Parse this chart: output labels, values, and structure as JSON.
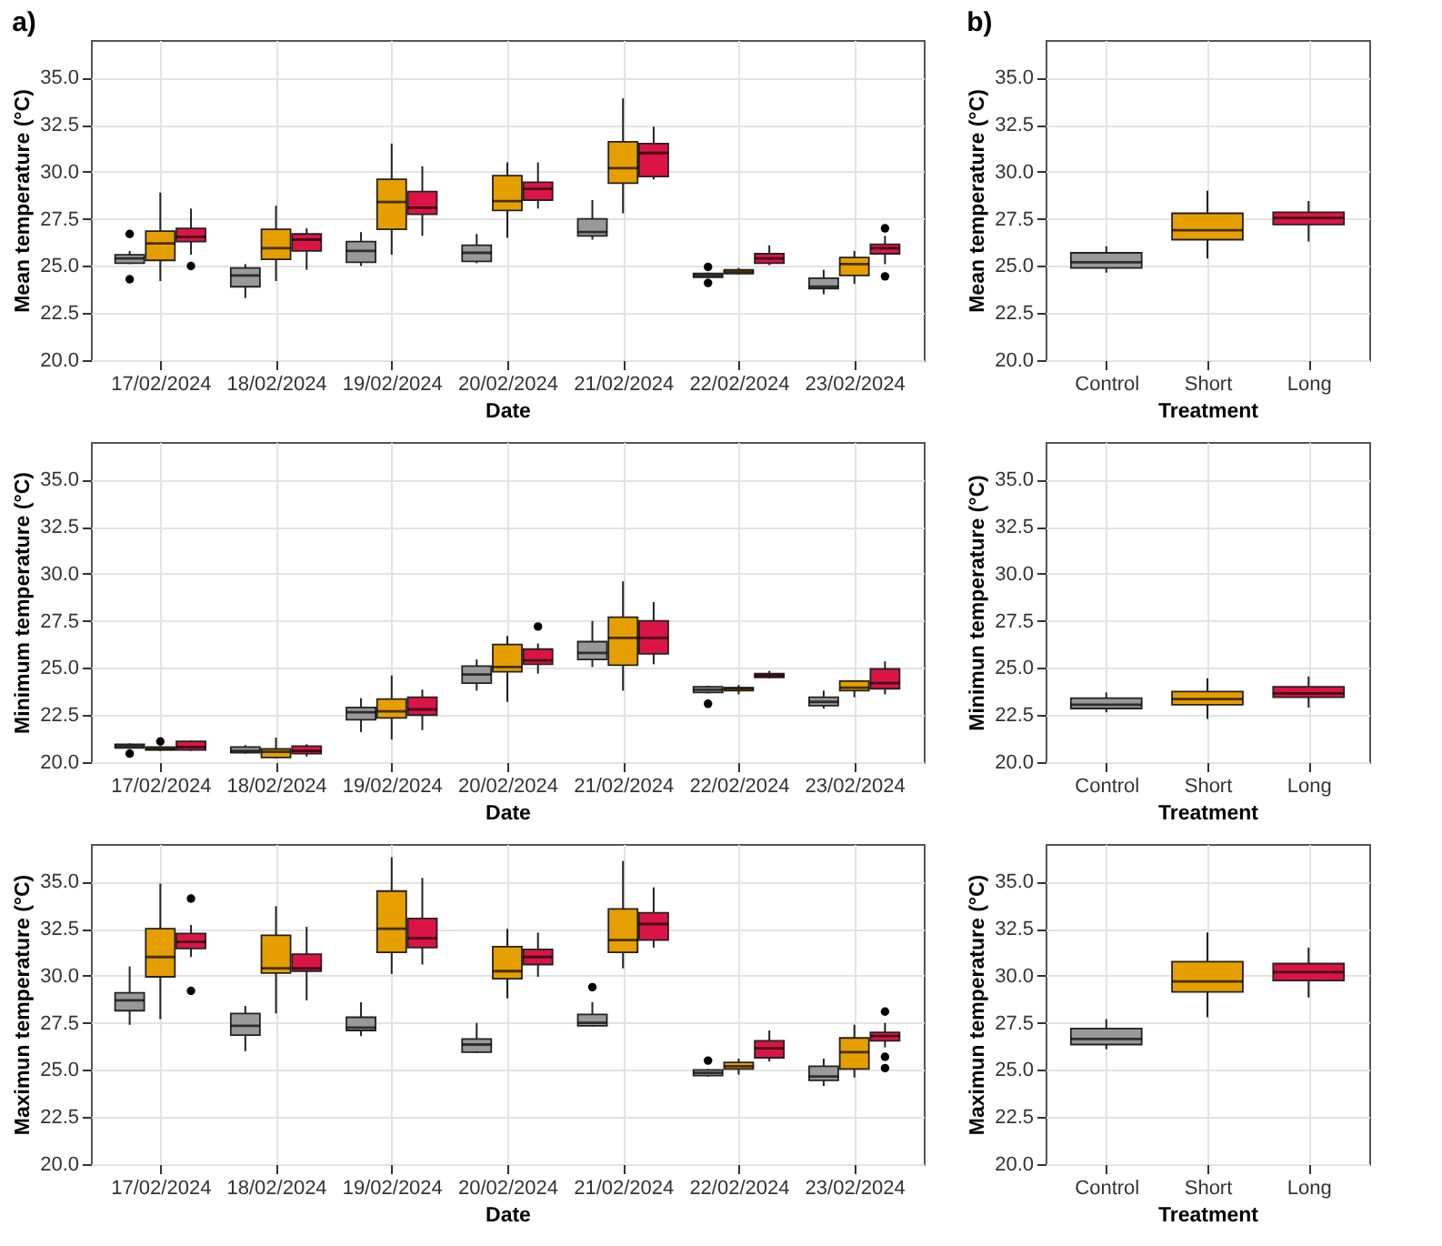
{
  "chart_data": [
    {
      "type": "box",
      "title": "a)",
      "categories": [
        "17/02/2024",
        "18/02/2024",
        "19/02/2024",
        "20/02/2024",
        "21/02/2024",
        "22/02/2024",
        "23/02/2024"
      ],
      "xlabel": "Date",
      "ylabel": "Mean temperature (°C)",
      "ylim": [
        20,
        37
      ],
      "yticks": [
        {
          "value": 20,
          "label": "20.0"
        },
        {
          "value": 22.5,
          "label": "22.5"
        },
        {
          "value": 25,
          "label": "25.0"
        },
        {
          "value": 27.5,
          "label": "27.5"
        },
        {
          "value": 30,
          "label": "30.0"
        },
        {
          "value": 32.5,
          "label": "32.5"
        },
        {
          "value": 35,
          "label": "35.0"
        }
      ],
      "grid": true,
      "series": [
        {
          "color": "#999999",
          "boxes": [
            {
              "low": 25.1,
              "q1": 25.15,
              "median": 25.4,
              "q3": 25.6,
              "high": 25.8,
              "outliers": [
                26.7,
                24.3
              ]
            },
            {
              "low": 23.3,
              "q1": 23.9,
              "median": 24.5,
              "q3": 24.9,
              "high": 25.1
            },
            {
              "low": 25.0,
              "q1": 25.2,
              "median": 25.8,
              "q3": 26.3,
              "high": 26.8
            },
            {
              "low": 25.15,
              "q1": 25.25,
              "median": 25.7,
              "q3": 26.1,
              "high": 26.7
            },
            {
              "low": 26.4,
              "q1": 26.6,
              "median": 26.8,
              "q3": 27.5,
              "high": 28.5
            },
            {
              "low": 24.35,
              "q1": 24.4,
              "median": 24.5,
              "q3": 24.6,
              "high": 24.65,
              "outliers": [
                24.95,
                24.1
              ]
            },
            {
              "low": 23.5,
              "q1": 23.8,
              "median": 23.9,
              "q3": 24.35,
              "high": 24.8
            }
          ]
        },
        {
          "color": "#e69f00",
          "boxes": [
            {
              "low": 24.2,
              "q1": 25.3,
              "median": 26.2,
              "q3": 26.85,
              "high": 28.9
            },
            {
              "low": 24.2,
              "q1": 25.35,
              "median": 25.95,
              "q3": 26.95,
              "high": 28.2
            },
            {
              "low": 25.6,
              "q1": 26.95,
              "median": 28.4,
              "q3": 29.6,
              "high": 31.5
            },
            {
              "low": 26.5,
              "q1": 27.95,
              "median": 28.45,
              "q3": 29.8,
              "high": 30.5
            },
            {
              "low": 27.8,
              "q1": 29.4,
              "median": 30.2,
              "q3": 31.6,
              "high": 33.9
            },
            {
              "low": 24.55,
              "q1": 24.6,
              "median": 24.7,
              "q3": 24.8,
              "high": 24.9
            },
            {
              "low": 24.05,
              "q1": 24.5,
              "median": 25.1,
              "q3": 25.45,
              "high": 25.8
            }
          ]
        },
        {
          "color": "#dc1446",
          "boxes": [
            {
              "low": 25.6,
              "q1": 26.3,
              "median": 26.55,
              "q3": 27.0,
              "high": 28.05,
              "outliers": [
                25.0
              ]
            },
            {
              "low": 24.8,
              "q1": 25.8,
              "median": 26.4,
              "q3": 26.7,
              "high": 27.0
            },
            {
              "low": 26.6,
              "q1": 27.75,
              "median": 28.1,
              "q3": 28.95,
              "high": 30.3
            },
            {
              "low": 28.05,
              "q1": 28.5,
              "median": 29.1,
              "q3": 29.45,
              "high": 30.5
            },
            {
              "low": 29.6,
              "q1": 29.75,
              "median": 31.0,
              "q3": 31.5,
              "high": 32.4
            },
            {
              "low": 25.05,
              "q1": 25.15,
              "median": 25.4,
              "q3": 25.65,
              "high": 26.1
            },
            {
              "low": 25.1,
              "q1": 25.65,
              "median": 25.95,
              "q3": 26.15,
              "high": 26.6,
              "outliers": [
                27.0,
                24.45
              ]
            }
          ]
        }
      ]
    },
    {
      "type": "box",
      "title": "b)",
      "categories": [
        "Control",
        "Short",
        "Long"
      ],
      "xlabel": "Treatment",
      "ylabel": "Mean temperature (°C)",
      "ylim": [
        20,
        37
      ],
      "yticks": [
        {
          "value": 20,
          "label": "20.0"
        },
        {
          "value": 22.5,
          "label": "22.5"
        },
        {
          "value": 25,
          "label": "25.0"
        },
        {
          "value": 27.5,
          "label": "27.5"
        },
        {
          "value": 30,
          "label": "30.0"
        },
        {
          "value": 32.5,
          "label": "32.5"
        },
        {
          "value": 35,
          "label": "35.0"
        }
      ],
      "grid": true,
      "series": [
        {
          "color": "#999999",
          "boxes": [
            {
              "low": 24.65,
              "q1": 24.9,
              "median": 25.2,
              "q3": 25.7,
              "high": 26.05
            },
            null,
            null
          ]
        },
        {
          "color": "#e69f00",
          "boxes": [
            null,
            {
              "low": 25.4,
              "q1": 26.4,
              "median": 26.9,
              "q3": 27.8,
              "high": 29.0
            },
            null
          ]
        },
        {
          "color": "#dc1446",
          "boxes": [
            null,
            null,
            {
              "low": 26.3,
              "q1": 27.2,
              "median": 27.55,
              "q3": 27.85,
              "high": 28.45
            }
          ]
        }
      ]
    },
    {
      "type": "box",
      "categories": [
        "17/02/2024",
        "18/02/2024",
        "19/02/2024",
        "20/02/2024",
        "21/02/2024",
        "22/02/2024",
        "23/02/2024"
      ],
      "xlabel": "Date",
      "ylabel": "Minimum temperature (°C)",
      "ylim": [
        20,
        37
      ],
      "yticks": [
        {
          "value": 20,
          "label": "20.0"
        },
        {
          "value": 22.5,
          "label": "22.5"
        },
        {
          "value": 25,
          "label": "25.0"
        },
        {
          "value": 27.5,
          "label": "27.5"
        },
        {
          "value": 30,
          "label": "30.0"
        },
        {
          "value": 32.5,
          "label": "32.5"
        },
        {
          "value": 35,
          "label": "35.0"
        }
      ],
      "grid": true,
      "series": [
        {
          "color": "#999999",
          "boxes": [
            {
              "low": 20.7,
              "q1": 20.75,
              "median": 20.85,
              "q3": 20.95,
              "high": 21.0,
              "outliers": [
                20.45
              ]
            },
            {
              "low": 20.45,
              "q1": 20.5,
              "median": 20.6,
              "q3": 20.8,
              "high": 20.9
            },
            {
              "low": 21.6,
              "q1": 22.25,
              "median": 22.65,
              "q3": 22.9,
              "high": 23.4
            },
            {
              "low": 23.8,
              "q1": 24.2,
              "median": 24.65,
              "q3": 25.1,
              "high": 25.45
            },
            {
              "low": 25.05,
              "q1": 25.45,
              "median": 25.8,
              "q3": 26.4,
              "high": 27.5
            },
            {
              "low": 23.65,
              "q1": 23.7,
              "median": 23.85,
              "q3": 24.0,
              "high": 24.05,
              "outliers": [
                23.1
              ]
            },
            {
              "low": 22.85,
              "q1": 23.0,
              "median": 23.2,
              "q3": 23.45,
              "high": 23.8
            }
          ]
        },
        {
          "color": "#e69f00",
          "boxes": [
            {
              "low": 20.6,
              "q1": 20.65,
              "median": 20.7,
              "q3": 20.8,
              "high": 20.85,
              "outliers": [
                21.1
              ]
            },
            {
              "low": 20.2,
              "q1": 20.25,
              "median": 20.55,
              "q3": 20.7,
              "high": 21.3
            },
            {
              "low": 21.2,
              "q1": 22.35,
              "median": 22.7,
              "q3": 23.35,
              "high": 24.6
            },
            {
              "low": 23.2,
              "q1": 24.8,
              "median": 25.05,
              "q3": 26.25,
              "high": 26.7
            },
            {
              "low": 23.8,
              "q1": 25.15,
              "median": 26.6,
              "q3": 27.7,
              "high": 29.6
            },
            {
              "low": 23.6,
              "q1": 23.8,
              "median": 23.9,
              "q3": 23.95,
              "high": 24.1
            },
            {
              "low": 23.45,
              "q1": 23.8,
              "median": 23.95,
              "q3": 24.3,
              "high": 24.35
            }
          ]
        },
        {
          "color": "#dc1446",
          "boxes": [
            {
              "low": 20.6,
              "q1": 20.65,
              "median": 20.8,
              "q3": 21.1,
              "high": 21.15
            },
            {
              "low": 20.3,
              "q1": 20.45,
              "median": 20.6,
              "q3": 20.85,
              "high": 20.95
            },
            {
              "low": 21.7,
              "q1": 22.5,
              "median": 22.8,
              "q3": 23.45,
              "high": 23.85
            },
            {
              "low": 24.7,
              "q1": 25.2,
              "median": 25.4,
              "q3": 26.0,
              "high": 26.3,
              "outliers": [
                27.2
              ]
            },
            {
              "low": 25.2,
              "q1": 25.75,
              "median": 26.6,
              "q3": 27.5,
              "high": 28.5
            },
            {
              "low": 24.45,
              "q1": 24.5,
              "median": 24.6,
              "q3": 24.7,
              "high": 24.85
            },
            {
              "low": 23.6,
              "q1": 23.9,
              "median": 24.2,
              "q3": 24.95,
              "high": 25.35
            }
          ]
        }
      ]
    },
    {
      "type": "box",
      "categories": [
        "Control",
        "Short",
        "Long"
      ],
      "xlabel": "Treatment",
      "ylabel": "Minimun temperature (°C)",
      "ylim": [
        20,
        37
      ],
      "yticks": [
        {
          "value": 20,
          "label": "20.0"
        },
        {
          "value": 22.5,
          "label": "22.5"
        },
        {
          "value": 25,
          "label": "25.0"
        },
        {
          "value": 27.5,
          "label": "27.5"
        },
        {
          "value": 30,
          "label": "30.0"
        },
        {
          "value": 32.5,
          "label": "32.5"
        },
        {
          "value": 35,
          "label": "35.0"
        }
      ],
      "grid": true,
      "series": [
        {
          "color": "#999999",
          "boxes": [
            {
              "low": 22.65,
              "q1": 22.85,
              "median": 23.05,
              "q3": 23.4,
              "high": 23.7
            },
            null,
            null
          ]
        },
        {
          "color": "#e69f00",
          "boxes": [
            null,
            {
              "low": 22.3,
              "q1": 23.05,
              "median": 23.35,
              "q3": 23.75,
              "high": 24.45
            },
            null
          ]
        },
        {
          "color": "#dc1446",
          "boxes": [
            null,
            null,
            {
              "low": 22.9,
              "q1": 23.45,
              "median": 23.65,
              "q3": 24.0,
              "high": 24.55
            }
          ]
        }
      ]
    },
    {
      "type": "box",
      "categories": [
        "17/02/2024",
        "18/02/2024",
        "19/02/2024",
        "20/02/2024",
        "21/02/2024",
        "22/02/2024",
        "23/02/2024"
      ],
      "xlabel": "Date",
      "ylabel": "Maximun temperature (°C)",
      "ylim": [
        20,
        37
      ],
      "yticks": [
        {
          "value": 20,
          "label": "20.0"
        },
        {
          "value": 22.5,
          "label": "22.5"
        },
        {
          "value": 25,
          "label": "25.0"
        },
        {
          "value": 27.5,
          "label": "27.5"
        },
        {
          "value": 30,
          "label": "30.0"
        },
        {
          "value": 32.5,
          "label": "32.5"
        },
        {
          "value": 35,
          "label": "35.0"
        }
      ],
      "grid": true,
      "series": [
        {
          "color": "#999999",
          "boxes": [
            {
              "low": 27.4,
              "q1": 28.15,
              "median": 28.7,
              "q3": 29.1,
              "high": 30.5
            },
            {
              "low": 26.0,
              "q1": 26.85,
              "median": 27.35,
              "q3": 28.0,
              "high": 28.4
            },
            {
              "low": 26.8,
              "q1": 27.1,
              "median": 27.25,
              "q3": 27.8,
              "high": 28.6
            },
            {
              "low": 25.9,
              "q1": 25.95,
              "median": 26.35,
              "q3": 26.65,
              "high": 27.5
            },
            {
              "low": 27.3,
              "q1": 27.35,
              "median": 27.5,
              "q3": 27.95,
              "high": 28.6,
              "outliers": [
                29.4
              ]
            },
            {
              "low": 24.65,
              "q1": 24.7,
              "median": 24.85,
              "q3": 25.0,
              "high": 25.05,
              "outliers": [
                25.5
              ]
            },
            {
              "low": 24.15,
              "q1": 24.45,
              "median": 24.65,
              "q3": 25.2,
              "high": 25.6
            }
          ]
        },
        {
          "color": "#e69f00",
          "boxes": [
            {
              "low": 27.7,
              "q1": 29.95,
              "median": 31.0,
              "q3": 32.5,
              "high": 34.9
            },
            {
              "low": 28.0,
              "q1": 30.15,
              "median": 30.4,
              "q3": 32.15,
              "high": 33.7
            },
            {
              "low": 30.1,
              "q1": 31.25,
              "median": 32.5,
              "q3": 34.5,
              "high": 36.3
            },
            {
              "low": 28.8,
              "q1": 29.85,
              "median": 30.25,
              "q3": 31.55,
              "high": 32.5
            },
            {
              "low": 30.4,
              "q1": 31.25,
              "median": 31.9,
              "q3": 33.55,
              "high": 36.1
            },
            {
              "low": 24.75,
              "q1": 25.05,
              "median": 25.2,
              "q3": 25.4,
              "high": 25.6
            },
            {
              "low": 24.6,
              "q1": 25.05,
              "median": 25.95,
              "q3": 26.7,
              "high": 27.4
            }
          ]
        },
        {
          "color": "#dc1446",
          "boxes": [
            {
              "low": 31.0,
              "q1": 31.45,
              "median": 31.8,
              "q3": 32.25,
              "high": 32.7,
              "outliers": [
                34.1,
                29.2
              ]
            },
            {
              "low": 28.7,
              "q1": 30.25,
              "median": 30.4,
              "q3": 31.15,
              "high": 32.6
            },
            {
              "low": 30.6,
              "q1": 31.5,
              "median": 32.0,
              "q3": 33.05,
              "high": 35.2
            },
            {
              "low": 29.95,
              "q1": 30.6,
              "median": 31.0,
              "q3": 31.4,
              "high": 32.3
            },
            {
              "low": 31.5,
              "q1": 31.9,
              "median": 32.75,
              "q3": 33.35,
              "high": 34.7
            },
            {
              "low": 25.45,
              "q1": 25.65,
              "median": 26.15,
              "q3": 26.55,
              "high": 27.1
            },
            {
              "low": 26.2,
              "q1": 26.55,
              "median": 26.8,
              "q3": 27.0,
              "high": 27.5,
              "outliers": [
                28.1,
                25.7,
                25.1
              ]
            }
          ]
        }
      ]
    },
    {
      "type": "box",
      "categories": [
        "Control",
        "Short",
        "Long"
      ],
      "xlabel": "Treatment",
      "ylabel": "Maximun temperature (°C)",
      "ylim": [
        20,
        37
      ],
      "yticks": [
        {
          "value": 20,
          "label": "20.0"
        },
        {
          "value": 22.5,
          "label": "22.5"
        },
        {
          "value": 25,
          "label": "25.0"
        },
        {
          "value": 27.5,
          "label": "27.5"
        },
        {
          "value": 30,
          "label": "30.0"
        },
        {
          "value": 32.5,
          "label": "32.5"
        },
        {
          "value": 35,
          "label": "35.0"
        }
      ],
      "grid": true,
      "series": [
        {
          "color": "#999999",
          "boxes": [
            {
              "low": 26.1,
              "q1": 26.35,
              "median": 26.65,
              "q3": 27.2,
              "high": 27.7
            },
            null,
            null
          ]
        },
        {
          "color": "#e69f00",
          "boxes": [
            null,
            {
              "low": 27.8,
              "q1": 29.15,
              "median": 29.7,
              "q3": 30.75,
              "high": 32.3
            },
            null
          ]
        },
        {
          "color": "#dc1446",
          "boxes": [
            null,
            null,
            {
              "low": 28.85,
              "q1": 29.75,
              "median": 30.2,
              "q3": 30.65,
              "high": 31.5
            }
          ]
        }
      ]
    }
  ]
}
